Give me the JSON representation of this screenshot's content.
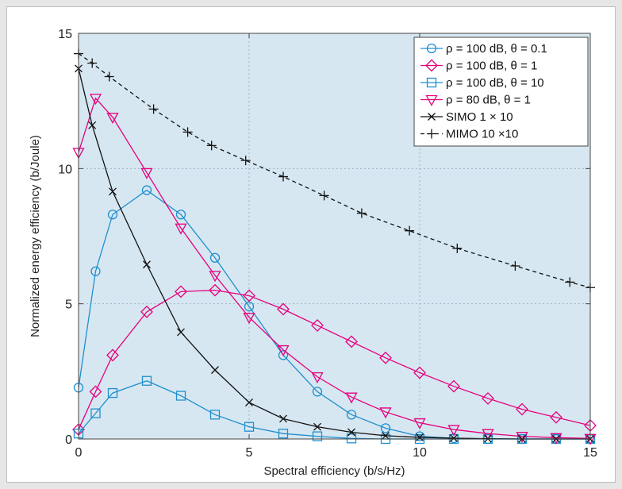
{
  "chart_data": {
    "type": "line",
    "title": "",
    "xlabel": "Spectral efficiency (b/s/Hz)",
    "ylabel": "Normalized energy efficiency (b/Joule)",
    "xlim": [
      0,
      15
    ],
    "ylim": [
      0,
      15
    ],
    "xticks": [
      "0",
      "5",
      "10",
      "15"
    ],
    "yticks": [
      "0",
      "5",
      "10",
      "15"
    ],
    "grid": true,
    "legend_position": "top-right",
    "plot_background": "#d7e7f1",
    "series": [
      {
        "name": "ρ = 100 dB, θ = 0.1",
        "color": "#1f8fcf",
        "marker": "circle",
        "dashed": false,
        "x": [
          0,
          0.5,
          1,
          2,
          3,
          4,
          5,
          6,
          7,
          8,
          9,
          10,
          11,
          12,
          13,
          14,
          15
        ],
        "y": [
          1.9,
          6.2,
          8.3,
          9.2,
          8.3,
          6.7,
          4.9,
          3.1,
          1.75,
          0.9,
          0.4,
          0.1,
          0.03,
          0.0,
          0.0,
          0.0,
          0.0
        ]
      },
      {
        "name": "ρ = 100 dB, θ = 1",
        "color": "#e5007e",
        "marker": "diamond",
        "dashed": false,
        "x": [
          0,
          0.5,
          1,
          2,
          3,
          4,
          5,
          6,
          7,
          8,
          9,
          10,
          11,
          12,
          13,
          14,
          15
        ],
        "y": [
          0.35,
          1.75,
          3.1,
          4.7,
          5.45,
          5.5,
          5.3,
          4.8,
          4.2,
          3.6,
          3.0,
          2.45,
          1.95,
          1.5,
          1.1,
          0.8,
          0.5
        ]
      },
      {
        "name": "ρ = 100 dB, θ = 10",
        "color": "#1f8fcf",
        "marker": "square",
        "dashed": false,
        "x": [
          0,
          0.5,
          1,
          2,
          3,
          4,
          5,
          6,
          7,
          8,
          9,
          10,
          11,
          12,
          13,
          14,
          15
        ],
        "y": [
          0.2,
          0.95,
          1.7,
          2.15,
          1.6,
          0.9,
          0.45,
          0.2,
          0.1,
          0.02,
          0.0,
          0.0,
          0.0,
          0.0,
          0.0,
          0.0,
          0.0
        ]
      },
      {
        "name": "ρ = 80 dB, θ = 1",
        "color": "#e5007e",
        "marker": "triangle-down",
        "dashed": false,
        "x": [
          0,
          0.5,
          1,
          2,
          3,
          4,
          5,
          6,
          7,
          8,
          9,
          10,
          11,
          12,
          13,
          14,
          15
        ],
        "y": [
          10.6,
          12.6,
          11.9,
          9.85,
          7.8,
          6.05,
          4.5,
          3.3,
          2.3,
          1.55,
          1.0,
          0.6,
          0.35,
          0.2,
          0.1,
          0.05,
          0.02
        ]
      },
      {
        "name": "SIMO 1 × 10",
        "color": "#111111",
        "marker": "x",
        "dashed": false,
        "x": [
          0,
          0.4,
          1,
          2,
          3,
          4,
          5,
          6,
          7,
          8,
          9,
          10,
          11,
          12,
          13,
          14,
          15
        ],
        "y": [
          13.7,
          11.6,
          9.15,
          6.45,
          3.95,
          2.55,
          1.35,
          0.75,
          0.45,
          0.25,
          0.12,
          0.06,
          0.03,
          0.01,
          0.0,
          0.0,
          0.0
        ]
      },
      {
        "name": "MIMO 10 ×10",
        "color": "#111111",
        "marker": "plus",
        "dashed": true,
        "x": [
          0,
          0.4,
          0.9,
          2.2,
          3.2,
          3.9,
          4.9,
          6.0,
          7.2,
          8.3,
          9.7,
          11.1,
          12.8,
          14.4,
          15
        ],
        "y": [
          14.25,
          13.9,
          13.4,
          12.2,
          11.35,
          10.85,
          10.3,
          9.7,
          9.0,
          8.35,
          7.7,
          7.05,
          6.4,
          5.8,
          5.6
        ]
      }
    ]
  }
}
